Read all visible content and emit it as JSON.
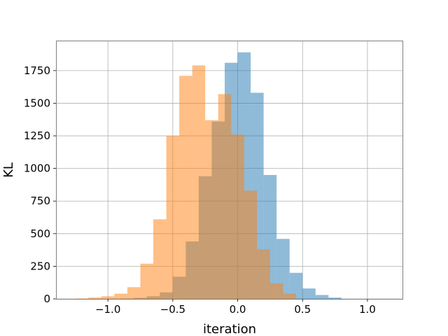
{
  "chart_data": {
    "type": "histogram",
    "xlabel": "iteration",
    "ylabel": "KL",
    "xlim": [
      -1.4,
      1.27
    ],
    "ylim": [
      0,
      1980
    ],
    "grid": true,
    "xticks": [
      -1.0,
      -0.5,
      0.0,
      0.5,
      1.0
    ],
    "xtick_labels": [
      "−1.0",
      "−0.5",
      "0.0",
      "0.5",
      "1.0"
    ],
    "yticks": [
      0,
      250,
      500,
      750,
      1000,
      1250,
      1500,
      1750
    ],
    "ytick_labels": [
      "0",
      "250",
      "500",
      "750",
      "1000",
      "1250",
      "1500",
      "1750"
    ],
    "series": [
      {
        "color": "#1f77b4",
        "alpha": 0.5,
        "bin_edges": [
          -1.0,
          -0.9,
          -0.8,
          -0.7,
          -0.6,
          -0.5,
          -0.4,
          -0.3,
          -0.2,
          -0.1,
          0.0,
          0.1,
          0.2,
          0.3,
          0.4,
          0.5,
          0.6,
          0.7,
          0.8
        ],
        "counts": [
          1,
          3,
          8,
          20,
          50,
          170,
          440,
          940,
          1360,
          1810,
          1890,
          1580,
          950,
          460,
          200,
          80,
          30,
          10
        ]
      },
      {
        "color": "#ff7f0e",
        "alpha": 0.5,
        "bin_edges": [
          -1.25,
          -1.15,
          -1.05,
          -0.95,
          -0.85,
          -0.75,
          -0.65,
          -0.55,
          -0.45,
          -0.35,
          -0.25,
          -0.15,
          -0.05,
          0.05,
          0.15,
          0.25,
          0.35,
          0.45
        ],
        "counts": [
          3,
          10,
          20,
          40,
          90,
          270,
          610,
          1250,
          1710,
          1790,
          1370,
          1570,
          1260,
          830,
          380,
          120,
          40
        ]
      }
    ]
  }
}
